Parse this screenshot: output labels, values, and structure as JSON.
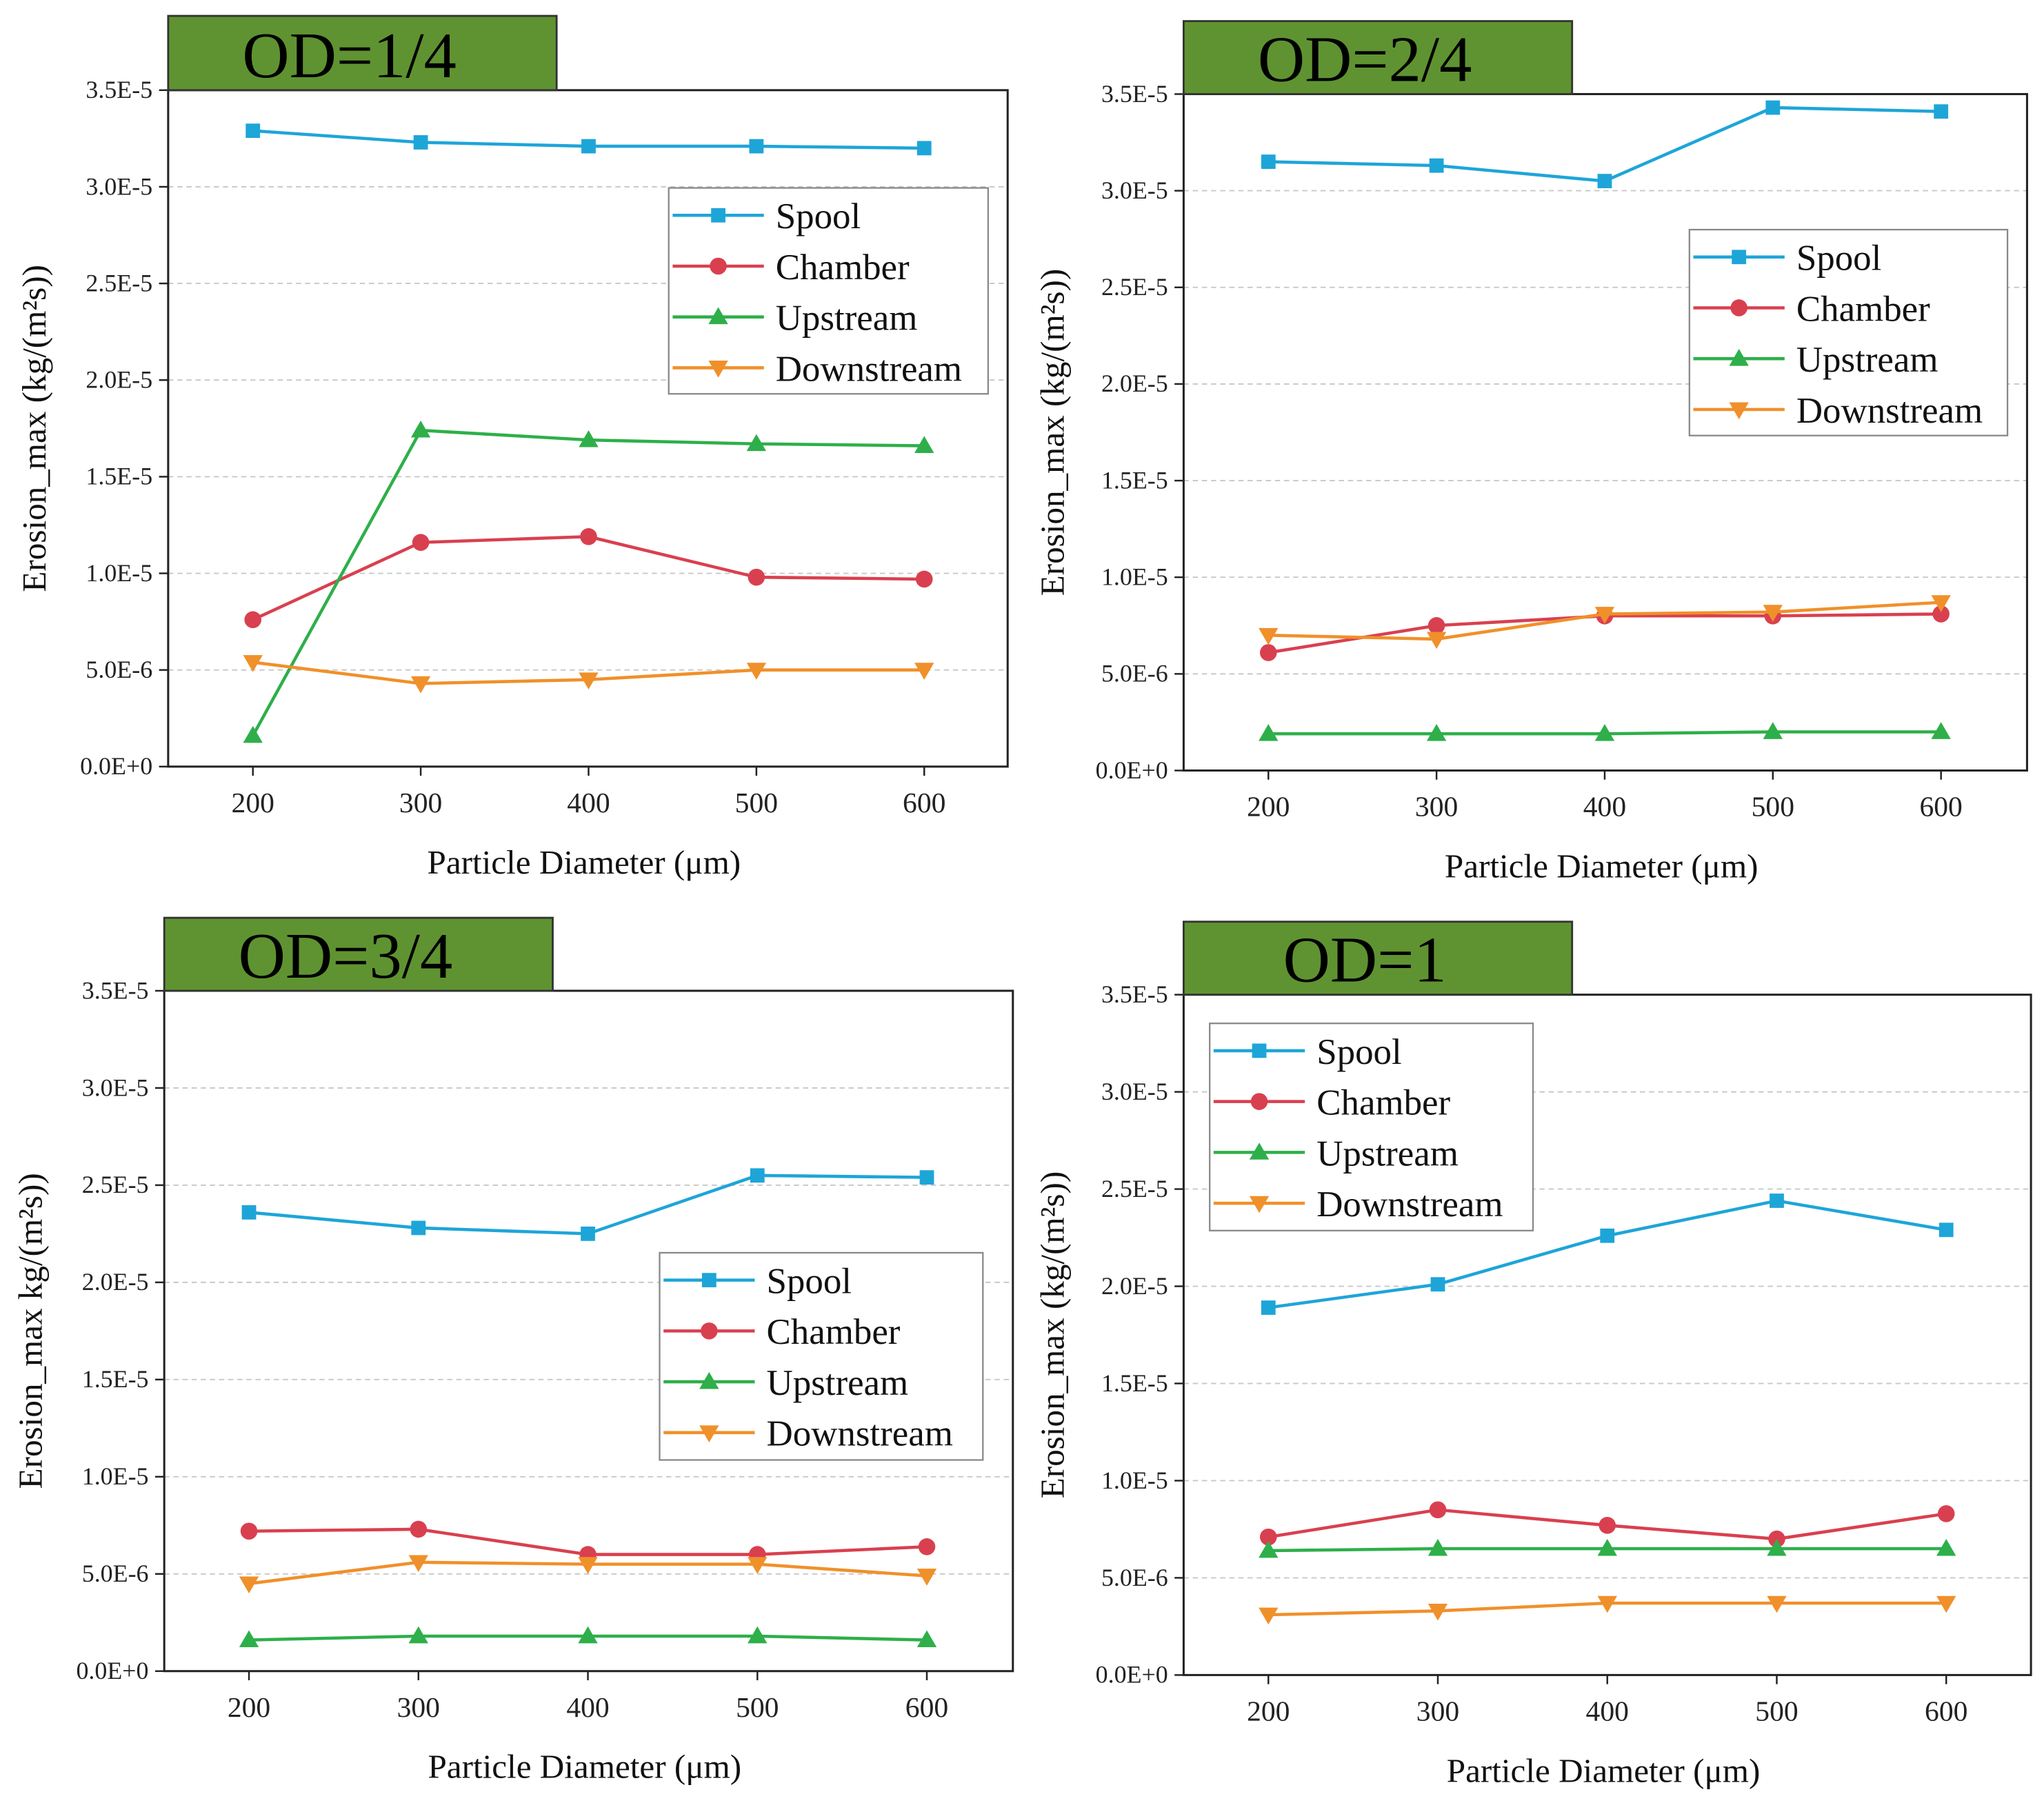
{
  "colors": {
    "Spool": "#1ea5d8",
    "Chamber": "#d9404f",
    "Upstream": "#2eaf4a",
    "Downstream": "#f0902a",
    "title_bg": "#5f9331",
    "grid": "#c8c8c8"
  },
  "chart_data": [
    {
      "type": "line",
      "title": "OD=1/4",
      "xlabel": "Particle Diameter (μm)",
      "ylabel": "Erosion_max  (kg/(m²s))",
      "x": [
        200,
        300,
        400,
        500,
        600
      ],
      "ylim": [
        0,
        3.5e-05
      ],
      "grid": true,
      "legend": "top-right",
      "yticks": [
        "0.0E+0",
        "5.0E-6",
        "1.0E-5",
        "1.5E-5",
        "2.0E-5",
        "2.5E-5",
        "3.0E-5",
        "3.5E-5"
      ],
      "series": [
        {
          "name": "Spool",
          "marker": "square",
          "values": [
            3.29e-05,
            3.23e-05,
            3.21e-05,
            3.21e-05,
            3.2e-05
          ]
        },
        {
          "name": "Chamber",
          "marker": "circle",
          "values": [
            7.6e-06,
            1.16e-05,
            1.19e-05,
            9.8e-06,
            9.7e-06
          ]
        },
        {
          "name": "Upstream",
          "marker": "triangle-up",
          "values": [
            1.6e-06,
            1.74e-05,
            1.69e-05,
            1.67e-05,
            1.66e-05
          ]
        },
        {
          "name": "Downstream",
          "marker": "triangle-down",
          "values": [
            5.4e-06,
            4.3e-06,
            4.5e-06,
            5e-06,
            5e-06
          ]
        }
      ]
    },
    {
      "type": "line",
      "title": "OD=2/4",
      "xlabel": "Particle Diameter (μm)",
      "ylabel": "Erosion_max  (kg/(m²s))",
      "x": [
        200,
        300,
        400,
        500,
        600
      ],
      "ylim": [
        0,
        3.5e-05
      ],
      "grid": true,
      "legend": "top-right",
      "yticks": [
        "0.0E+0",
        "5.0E-6",
        "1.0E-5",
        "1.5E-5",
        "2.0E-5",
        "2.5E-5",
        "3.0E-5",
        "3.5E-5"
      ],
      "series": [
        {
          "name": "Spool",
          "marker": "square",
          "values": [
            3.15e-05,
            3.13e-05,
            3.05e-05,
            3.43e-05,
            3.41e-05
          ]
        },
        {
          "name": "Chamber",
          "marker": "circle",
          "values": [
            6.1e-06,
            7.5e-06,
            8e-06,
            8e-06,
            8.1e-06
          ]
        },
        {
          "name": "Upstream",
          "marker": "triangle-up",
          "values": [
            1.9e-06,
            1.9e-06,
            1.9e-06,
            2e-06,
            2e-06
          ]
        },
        {
          "name": "Downstream",
          "marker": "triangle-down",
          "values": [
            7e-06,
            6.8e-06,
            8.1e-06,
            8.2e-06,
            8.7e-06
          ]
        }
      ]
    },
    {
      "type": "line",
      "title": "OD=3/4",
      "xlabel": "Particle Diameter (μm)",
      "ylabel": "Erosion_max  kg/(m²s))",
      "x": [
        200,
        300,
        400,
        500,
        600
      ],
      "ylim": [
        0,
        3.5e-05
      ],
      "grid": true,
      "legend": "right",
      "yticks": [
        "0.0E+0",
        "5.0E-6",
        "1.0E-5",
        "1.5E-5",
        "2.0E-5",
        "2.5E-5",
        "3.0E-5",
        "3.5E-5"
      ],
      "series": [
        {
          "name": "Spool",
          "marker": "square",
          "values": [
            2.36e-05,
            2.28e-05,
            2.25e-05,
            2.55e-05,
            2.54e-05
          ]
        },
        {
          "name": "Chamber",
          "marker": "circle",
          "values": [
            7.2e-06,
            7.3e-06,
            6e-06,
            6e-06,
            6.4e-06
          ]
        },
        {
          "name": "Upstream",
          "marker": "triangle-up",
          "values": [
            1.6e-06,
            1.8e-06,
            1.8e-06,
            1.8e-06,
            1.6e-06
          ]
        },
        {
          "name": "Downstream",
          "marker": "triangle-down",
          "values": [
            4.5e-06,
            5.6e-06,
            5.5e-06,
            5.5e-06,
            4.9e-06
          ]
        }
      ]
    },
    {
      "type": "line",
      "title": "OD=1",
      "xlabel": "Particle Diameter (μm)",
      "ylabel": "Erosion_max  (kg/(m²s))",
      "x": [
        200,
        300,
        400,
        500,
        600
      ],
      "ylim": [
        0,
        3.5e-05
      ],
      "grid": true,
      "legend": "top-left",
      "yticks": [
        "0.0E+0",
        "5.0E-6",
        "1.0E-5",
        "1.5E-5",
        "2.0E-5",
        "2.5E-5",
        "3.0E-5",
        "3.5E-5"
      ],
      "series": [
        {
          "name": "Spool",
          "marker": "square",
          "values": [
            1.89e-05,
            2.01e-05,
            2.26e-05,
            2.44e-05,
            2.29e-05
          ]
        },
        {
          "name": "Chamber",
          "marker": "circle",
          "values": [
            7.1e-06,
            8.5e-06,
            7.7e-06,
            7e-06,
            8.3e-06
          ]
        },
        {
          "name": "Upstream",
          "marker": "triangle-up",
          "values": [
            6.4e-06,
            6.5e-06,
            6.5e-06,
            6.5e-06,
            6.5e-06
          ]
        },
        {
          "name": "Downstream",
          "marker": "triangle-down",
          "values": [
            3.1e-06,
            3.3e-06,
            3.7e-06,
            3.7e-06,
            3.7e-06
          ]
        }
      ]
    }
  ]
}
